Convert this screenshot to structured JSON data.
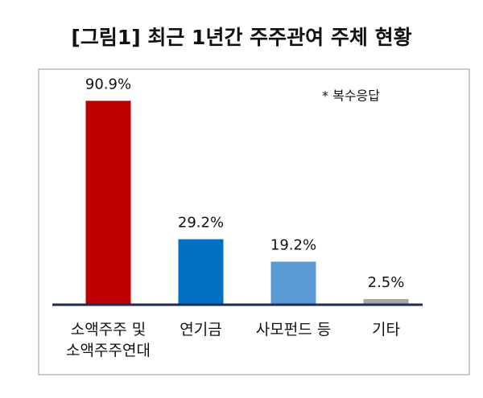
{
  "chart_data": {
    "type": "bar",
    "title": "[그림1] 최근 1년간 주주관여 주체 현황",
    "annotation": "* 복수응답",
    "categories": [
      "소액주주 및\n소액주주연대",
      "연기금",
      "사모펀드 등",
      "기타"
    ],
    "values": [
      90.9,
      29.2,
      19.2,
      2.5
    ],
    "value_labels": [
      "90.9%",
      "29.2%",
      "19.2%",
      "2.5%"
    ],
    "colors": [
      "#c00000",
      "#0070c0",
      "#5b9bd5",
      "#a6a6a6"
    ]
  }
}
